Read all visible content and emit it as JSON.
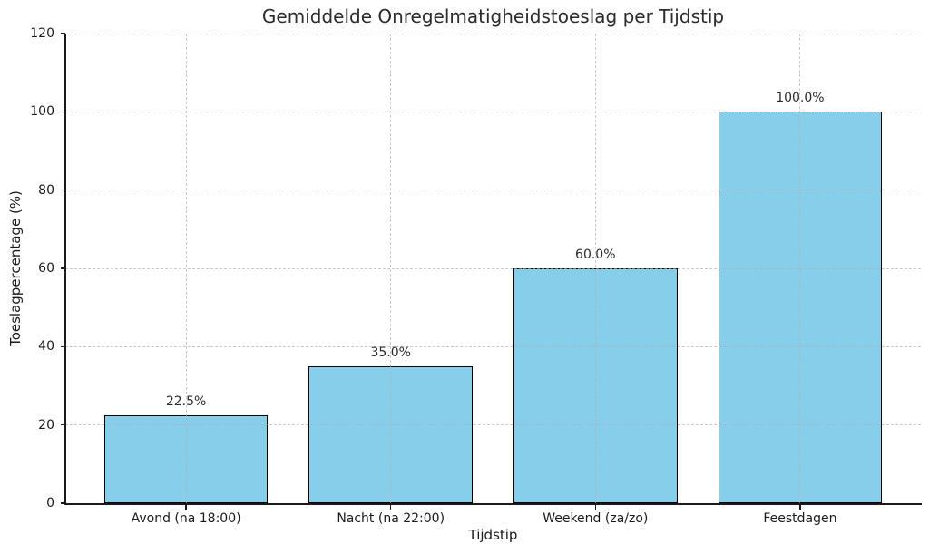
{
  "chart_data": {
    "type": "bar",
    "title": "Gemiddelde Onregelmatigheidstoeslag per Tijdstip",
    "xlabel": "Tijdstip",
    "ylabel": "Toeslagpercentage (%)",
    "categories": [
      "Avond (na 18:00)",
      "Nacht (na 22:00)",
      "Weekend (za/zo)",
      "Feestdagen"
    ],
    "values": [
      22.5,
      35.0,
      60.0,
      100.0
    ],
    "bar_labels": [
      "22.5%",
      "35.0%",
      "60.0%",
      "100.0%"
    ],
    "ylim": [
      0,
      120
    ],
    "yticks": [
      0,
      20,
      40,
      60,
      80,
      100,
      120
    ],
    "ytick_labels": [
      "0",
      "20",
      "40",
      "60",
      "80",
      "100",
      "120"
    ],
    "bar_color": "#87CEEB",
    "bar_edge_color": "#000000",
    "grid": true,
    "grid_style": "dashed",
    "legend_position": "none",
    "background_color": "#ffffff"
  }
}
